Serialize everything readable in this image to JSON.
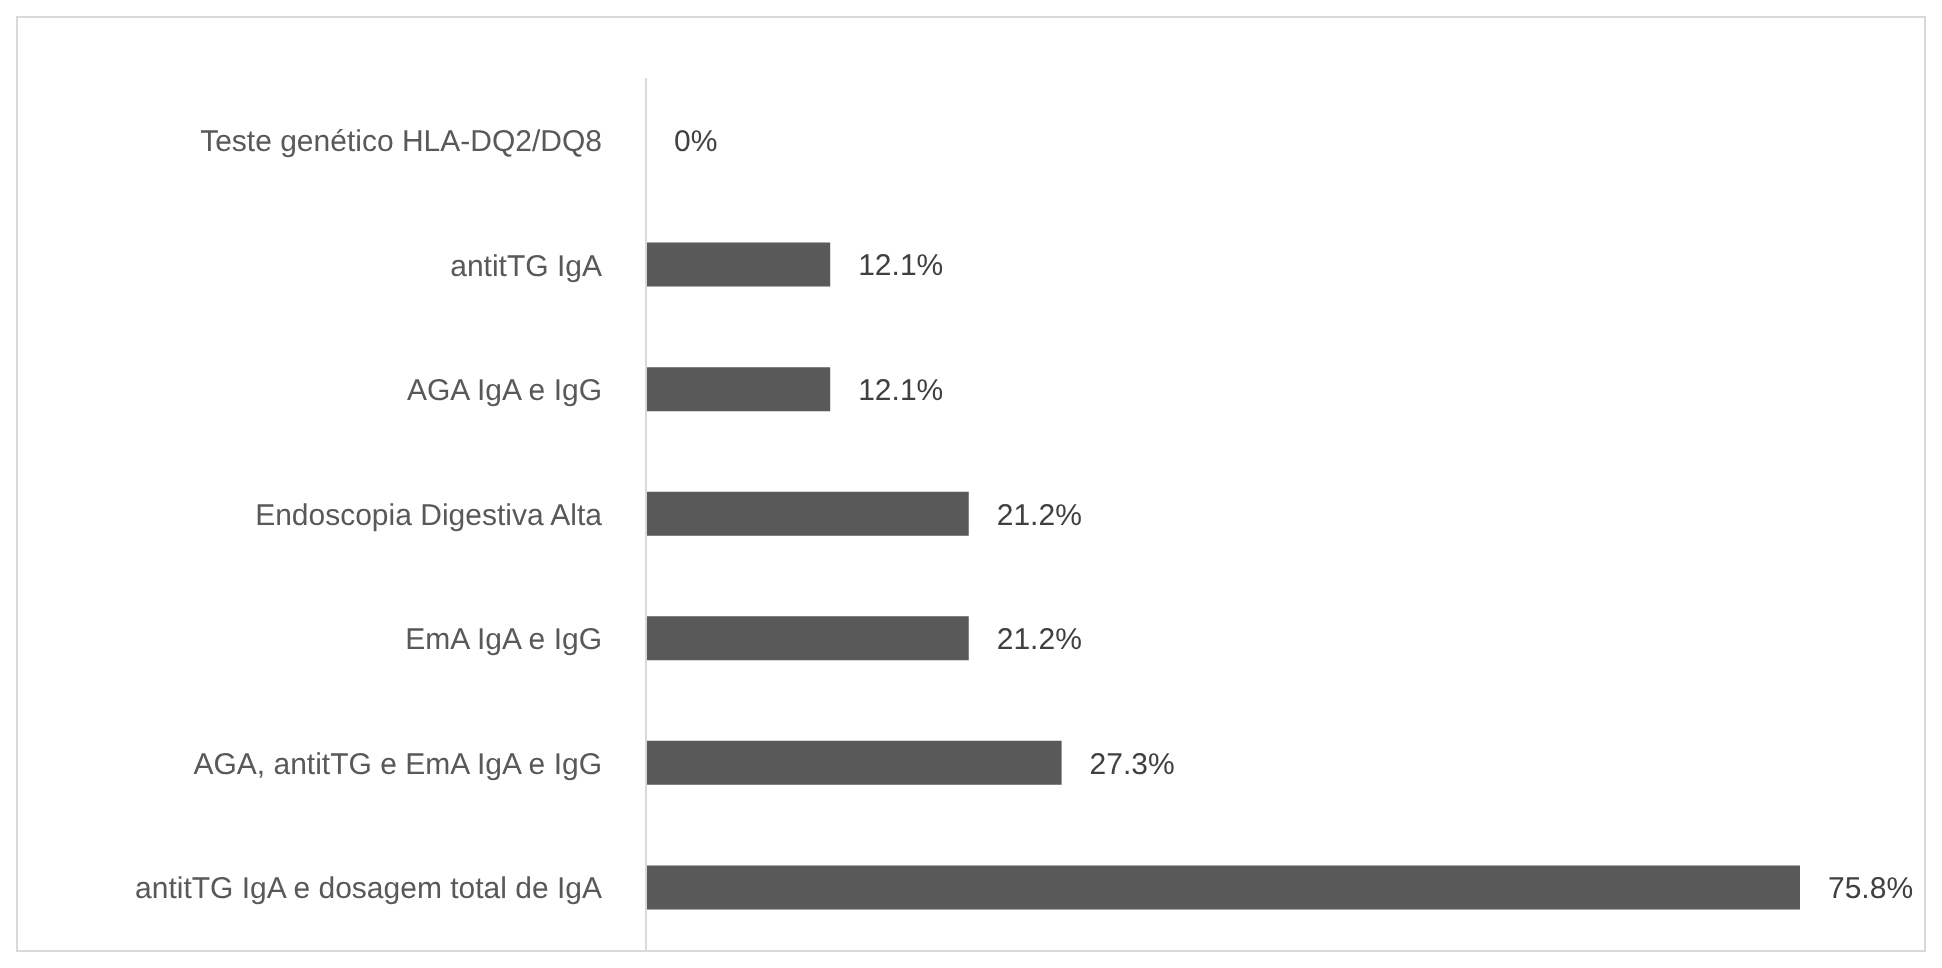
{
  "chart_data": {
    "type": "bar",
    "orientation": "horizontal",
    "categories": [
      "Teste genético HLA-DQ2/DQ8",
      "antitTG IgA",
      "AGA IgA e IgG",
      "Endoscopia Digestiva Alta",
      "EmA IgA e IgG",
      "AGA, antitTG e EmA IgA e IgG",
      "antitTG IgA e dosagem total de IgA"
    ],
    "values": [
      0,
      12.1,
      12.1,
      21.2,
      21.2,
      27.3,
      75.8
    ],
    "value_labels": [
      "0%",
      "12.1%",
      "12.1%",
      "21.2%",
      "21.2%",
      "27.3%",
      "75.8%"
    ],
    "color": "#595959",
    "grid": false,
    "legend": false
  }
}
